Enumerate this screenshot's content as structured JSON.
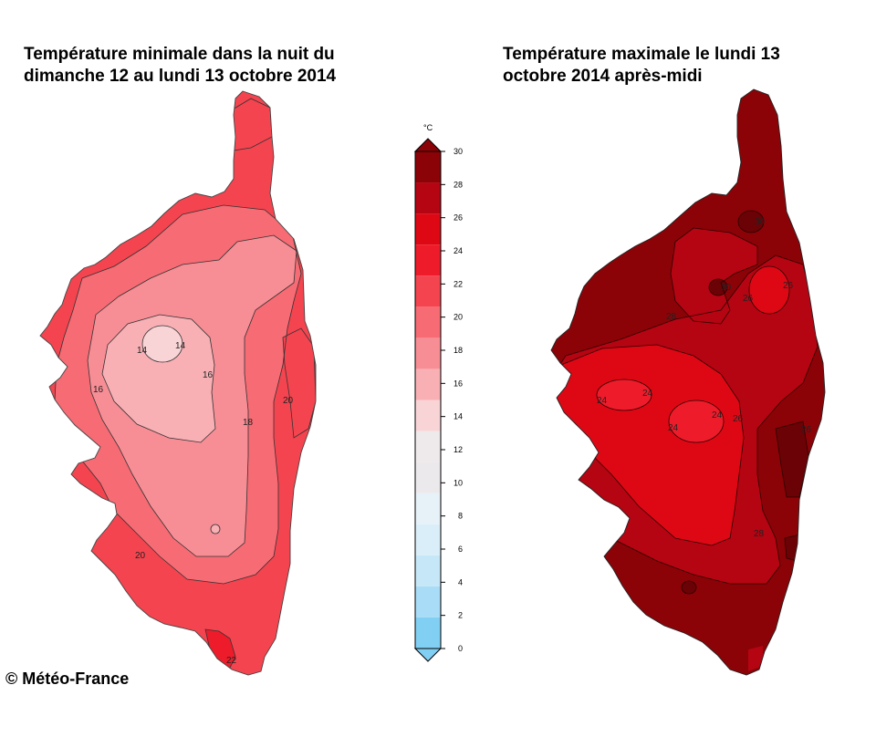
{
  "left_map": {
    "title_line1": "Température minimale dans la nuit du",
    "title_line2": "dimanche 12 au lundi 13 octobre 2014",
    "contour_labels": [
      "14",
      "14",
      "16",
      "16",
      "18",
      "20",
      "20",
      "22"
    ]
  },
  "right_map": {
    "title_line1": "Température maximale le lundi 13",
    "title_line2": "octobre 2014 après-midi",
    "contour_labels": [
      "28",
      "30",
      "30",
      "26",
      "26",
      "24",
      "24",
      "24",
      "24",
      "26",
      "26",
      "28",
      "28"
    ]
  },
  "colorbar": {
    "unit": "°C",
    "ticks": [
      "0",
      "2",
      "4",
      "6",
      "8",
      "10",
      "12",
      "14",
      "16",
      "18",
      "20",
      "22",
      "24",
      "26",
      "28",
      "30"
    ],
    "colors": [
      "#82cff4",
      "#a8dcf7",
      "#c6e7f8",
      "#daeef9",
      "#e6f1f8",
      "#ece9ec",
      "#eeeaec",
      "#f9d4d7",
      "#f8b0b5",
      "#f78e95",
      "#f76b74",
      "#f4444f",
      "#ee1c2a",
      "#de0815",
      "#b50412",
      "#8b0307"
    ]
  },
  "copyright": "© Météo-France"
}
